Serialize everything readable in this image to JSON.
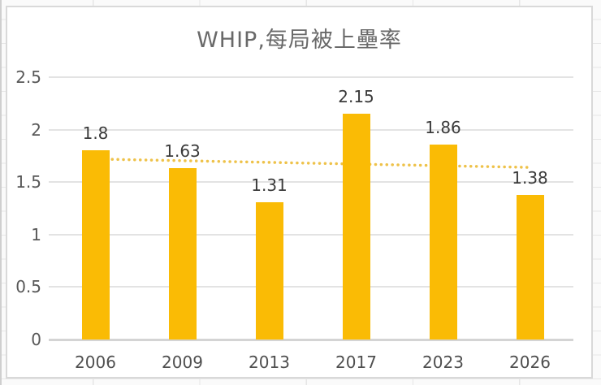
{
  "chart_data": {
    "type": "bar",
    "title": "WHIP,每局被上壘率",
    "categories": [
      "2006",
      "2009",
      "2013",
      "2017",
      "2023",
      "2026"
    ],
    "values": [
      1.8,
      1.63,
      1.31,
      2.15,
      1.86,
      1.38
    ],
    "value_labels": [
      "1.8",
      "1.63",
      "1.31",
      "2.15",
      "1.86",
      "1.38"
    ],
    "xlabel": "",
    "ylabel": "",
    "ylim": [
      0,
      2.5
    ],
    "yticks": [
      0,
      0.5,
      1,
      1.5,
      2,
      2.5
    ],
    "ytick_labels": [
      "0",
      "0.5",
      "1",
      "1.5",
      "2",
      "2.5"
    ],
    "grid": true,
    "legend": "none",
    "trendline": {
      "style": "dotted",
      "start_value": 1.72,
      "end_value": 1.64
    }
  },
  "colors": {
    "bar": "#FABB05",
    "trendline": "#EEC24A",
    "gridline": "#E3E3E3",
    "axis_line": "#D4D4D4",
    "title_text": "#696969",
    "axis_label_text": "#545454",
    "data_label_text": "#3A3A3A",
    "panel_background": "#FFFFFF",
    "panel_border": "#D9D9D9"
  }
}
